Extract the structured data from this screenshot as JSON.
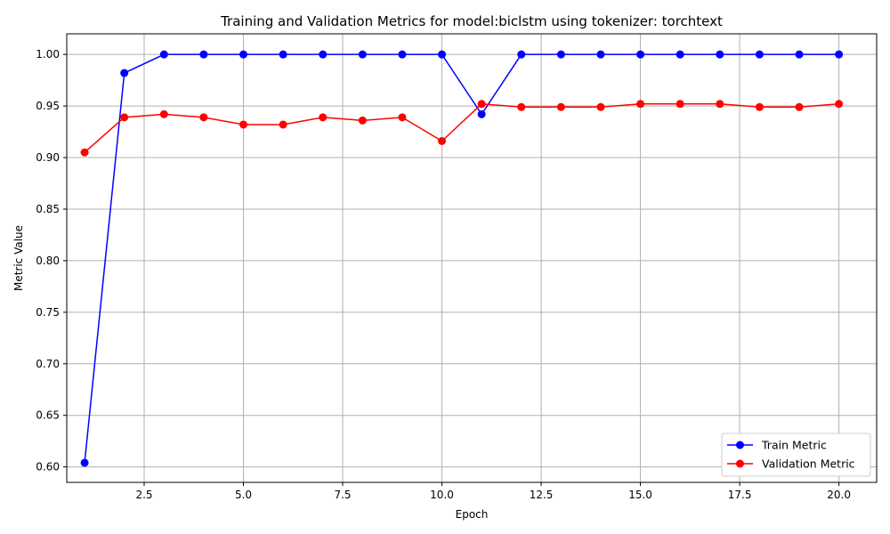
{
  "chart_data": {
    "type": "line",
    "title": "Training and Validation Metrics for model:biclstm using tokenizer: torchtext",
    "xlabel": "Epoch",
    "ylabel": "Metric Value",
    "xlim": [
      0.55,
      20.95
    ],
    "ylim": [
      0.585,
      1.02
    ],
    "xticks": [
      2.5,
      5.0,
      7.5,
      10.0,
      12.5,
      15.0,
      17.5,
      20.0
    ],
    "xtick_labels": [
      "2.5",
      "5.0",
      "7.5",
      "10.0",
      "12.5",
      "15.0",
      "17.5",
      "20.0"
    ],
    "yticks": [
      0.6,
      0.65,
      0.7,
      0.75,
      0.8,
      0.85,
      0.9,
      0.95,
      1.0
    ],
    "ytick_labels": [
      "0.60",
      "0.65",
      "0.70",
      "0.75",
      "0.80",
      "0.85",
      "0.90",
      "0.95",
      "1.00"
    ],
    "grid": true,
    "legend": "lower-right",
    "x": [
      1,
      2,
      3,
      4,
      5,
      6,
      7,
      8,
      9,
      10,
      11,
      12,
      13,
      14,
      15,
      16,
      17,
      18,
      19,
      20
    ],
    "series": [
      {
        "name": "Train Metric",
        "color": "#0000ff",
        "marker": "circle",
        "values": [
          0.604,
          0.982,
          1.0,
          1.0,
          1.0,
          1.0,
          1.0,
          1.0,
          1.0,
          1.0,
          0.942,
          1.0,
          1.0,
          1.0,
          1.0,
          1.0,
          1.0,
          1.0,
          1.0,
          1.0
        ]
      },
      {
        "name": "Validation Metric",
        "color": "#ff0000",
        "marker": "circle",
        "values": [
          0.905,
          0.939,
          0.942,
          0.939,
          0.932,
          0.932,
          0.939,
          0.936,
          0.939,
          0.916,
          0.952,
          0.949,
          0.949,
          0.949,
          0.952,
          0.952,
          0.952,
          0.949,
          0.949,
          0.952
        ]
      }
    ]
  }
}
